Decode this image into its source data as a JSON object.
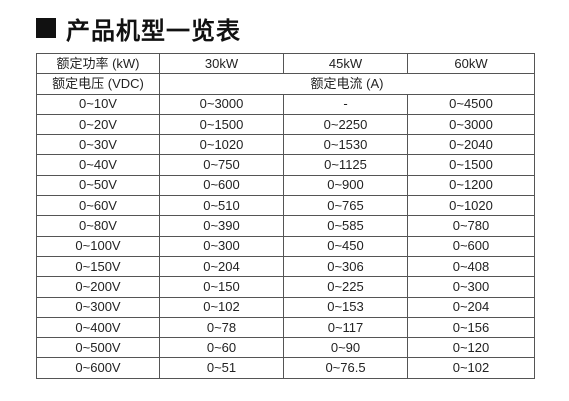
{
  "title": "产品机型一览表",
  "header": {
    "power_label": "额定功率 (kW)",
    "models": [
      "30kW",
      "45kW",
      "60kW"
    ],
    "voltage_label": "额定电压 (VDC)",
    "current_label": "额定电流 (A)"
  },
  "rows": [
    {
      "voltage": "0~10V",
      "c30": "0~3000",
      "c45": "-",
      "c60": "0~4500"
    },
    {
      "voltage": "0~20V",
      "c30": "0~1500",
      "c45": "0~2250",
      "c60": "0~3000"
    },
    {
      "voltage": "0~30V",
      "c30": "0~1020",
      "c45": "0~1530",
      "c60": "0~2040"
    },
    {
      "voltage": "0~40V",
      "c30": "0~750",
      "c45": "0~1125",
      "c60": "0~1500"
    },
    {
      "voltage": "0~50V",
      "c30": "0~600",
      "c45": "0~900",
      "c60": "0~1200"
    },
    {
      "voltage": "0~60V",
      "c30": "0~510",
      "c45": "0~765",
      "c60": "0~1020"
    },
    {
      "voltage": "0~80V",
      "c30": "0~390",
      "c45": "0~585",
      "c60": "0~780"
    },
    {
      "voltage": "0~100V",
      "c30": "0~300",
      "c45": "0~450",
      "c60": "0~600"
    },
    {
      "voltage": "0~150V",
      "c30": "0~204",
      "c45": "0~306",
      "c60": "0~408"
    },
    {
      "voltage": "0~200V",
      "c30": "0~150",
      "c45": "0~225",
      "c60": "0~300"
    },
    {
      "voltage": "0~300V",
      "c30": "0~102",
      "c45": "0~153",
      "c60": "0~204"
    },
    {
      "voltage": "0~400V",
      "c30": "0~78",
      "c45": "0~117",
      "c60": "0~156"
    },
    {
      "voltage": "0~500V",
      "c30": "0~60",
      "c45": "0~90",
      "c60": "0~120"
    },
    {
      "voltage": "0~600V",
      "c30": "0~51",
      "c45": "0~76.5",
      "c60": "0~102"
    }
  ]
}
